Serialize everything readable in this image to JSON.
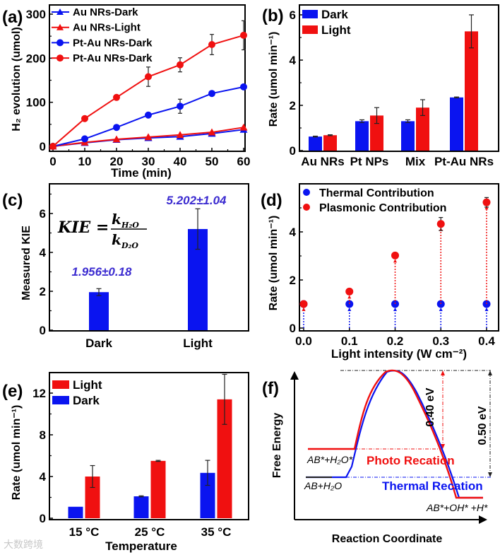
{
  "panel_labels": [
    "(a)",
    "(b)",
    "(c)",
    "(d)",
    "(e)",
    "(f)"
  ],
  "watermark": "大数跨境",
  "colors": {
    "blue": "#0a14f0",
    "red": "#f01010",
    "annot_blue": "#3b2bd0"
  },
  "chart_data": [
    {
      "id": "a",
      "type": "line",
      "xlabel": "Time (min)",
      "ylabel": "H₂ evolution (umol)",
      "xlim": [
        0,
        60
      ],
      "ylim": [
        0,
        300
      ],
      "xticks": [
        "0",
        "10",
        "20",
        "30",
        "40",
        "50",
        "60"
      ],
      "yticks": [
        "0",
        "100",
        "200",
        "300"
      ],
      "x": [
        0,
        10,
        20,
        30,
        40,
        50,
        60
      ],
      "legend_position": "top-left",
      "series": [
        {
          "name": "Au NRs-Dark",
          "marker": "triangle",
          "color": "#0a14f0",
          "values": [
            0,
            8,
            15,
            19,
            22,
            29,
            38
          ],
          "errors": [
            0,
            0,
            0,
            0,
            0,
            0,
            0
          ]
        },
        {
          "name": "Au NRs-Light",
          "marker": "triangle",
          "color": "#f01010",
          "values": [
            0,
            9,
            16,
            21,
            26,
            32,
            43
          ],
          "errors": [
            0,
            0,
            0,
            0,
            0,
            0,
            0
          ]
        },
        {
          "name": "Pt-Au NRs-Dark",
          "marker": "circle",
          "color": "#0a14f0",
          "values": [
            0,
            17,
            43,
            71,
            91,
            120,
            135
          ],
          "errors": [
            0,
            0,
            0,
            0,
            16,
            0,
            0
          ]
        },
        {
          "name": "Pt-Au NRs-Dark",
          "marker": "circle",
          "color": "#f01010",
          "values": [
            0,
            63,
            111,
            158,
            185,
            231,
            252
          ],
          "errors": [
            0,
            3,
            3,
            22,
            16,
            23,
            33
          ]
        }
      ]
    },
    {
      "id": "b",
      "type": "bar",
      "xlabel": "",
      "ylabel": "Rate (umol min⁻¹)",
      "ylim": [
        0,
        6.4
      ],
      "yticks": [
        "0",
        "2",
        "4",
        "6"
      ],
      "categories": [
        "Au NRs",
        "Pt NPs",
        "Mix",
        "Pt-Au NRs"
      ],
      "legend_position": "top-left",
      "series": [
        {
          "name": "Dark",
          "color": "#0a14f0",
          "values": [
            0.62,
            1.3,
            1.3,
            2.35
          ],
          "errors": [
            0.02,
            0.06,
            0.06,
            0.02
          ]
        },
        {
          "name": "Light",
          "color": "#f01010",
          "values": [
            0.68,
            1.55,
            1.9,
            5.27
          ],
          "errors": [
            0.02,
            0.35,
            0.35,
            0.73
          ]
        }
      ]
    },
    {
      "id": "c",
      "type": "bar",
      "xlabel": "",
      "ylabel": "Measured KIE",
      "ylim": [
        0,
        7.4
      ],
      "yticks": [
        "0",
        "2",
        "4",
        "6"
      ],
      "categories": [
        "Dark",
        "Light"
      ],
      "series": [
        {
          "name": "KIE",
          "color": "#0a14f0",
          "values": [
            1.956,
            5.202
          ],
          "errors": [
            0.18,
            1.04
          ]
        }
      ],
      "annotations": [
        "1.956±0.18",
        "5.202±1.04"
      ],
      "formula": {
        "lhs": "KIE =",
        "k": "k",
        "num_sub": "H₂O",
        "den_sub": "D₂O"
      }
    },
    {
      "id": "d",
      "type": "scatter",
      "xlabel": "Light intensity (W cm⁻²)",
      "ylabel": "Rate (umol min⁻¹)",
      "xlim": [
        0,
        0.4
      ],
      "ylim": [
        0,
        6
      ],
      "xticks": [
        "0.0",
        "0.1",
        "0.2",
        "0.3",
        "0.4"
      ],
      "yticks": [
        "0",
        "2",
        "4"
      ],
      "x": [
        0,
        0.1,
        0.2,
        0.3,
        0.4
      ],
      "legend_position": "top-left",
      "series": [
        {
          "name": "Thermal Contribution",
          "color": "#0a14f0",
          "values": [
            1.0,
            1.0,
            1.0,
            1.0,
            1.0
          ],
          "errors": [
            0,
            0,
            0,
            0,
            0
          ]
        },
        {
          "name": "Plasmonic Contribution",
          "color": "#f01010",
          "values": [
            1.0,
            1.52,
            3.02,
            4.33,
            5.23
          ],
          "errors": [
            0.05,
            0.08,
            0.08,
            0.27,
            0.2
          ]
        }
      ]
    },
    {
      "id": "e",
      "type": "bar",
      "xlabel": "Temperature",
      "ylabel": "Rate (umol min⁻¹)",
      "ylim": [
        0,
        14
      ],
      "yticks": [
        "0",
        "4",
        "8",
        "12"
      ],
      "categories": [
        "15 °C",
        "25 °C",
        "35 °C"
      ],
      "legend_position": "top-left",
      "series": [
        {
          "name": "Dark",
          "color": "#0a14f0",
          "values": [
            1.1,
            2.1,
            4.35
          ],
          "errors": [
            0,
            0.05,
            1.2
          ]
        },
        {
          "name": "Light",
          "color": "#f01010",
          "values": [
            4.0,
            5.5,
            11.4
          ],
          "errors": [
            1.05,
            0.05,
            2.4
          ]
        }
      ],
      "legend_order": [
        "Light",
        "Dark"
      ]
    },
    {
      "id": "f",
      "type": "diagram",
      "xlabel": "Reaction Coordinate",
      "ylabel": "Free Energy",
      "states": [
        "AB*+H₂O*",
        "AB+H₂O",
        "AB*+OH* +H*"
      ],
      "curves": [
        "Photo Recation",
        "Thermal Recation"
      ],
      "barriers": [
        "0.40 eV",
        "0.50 eV"
      ]
    }
  ]
}
